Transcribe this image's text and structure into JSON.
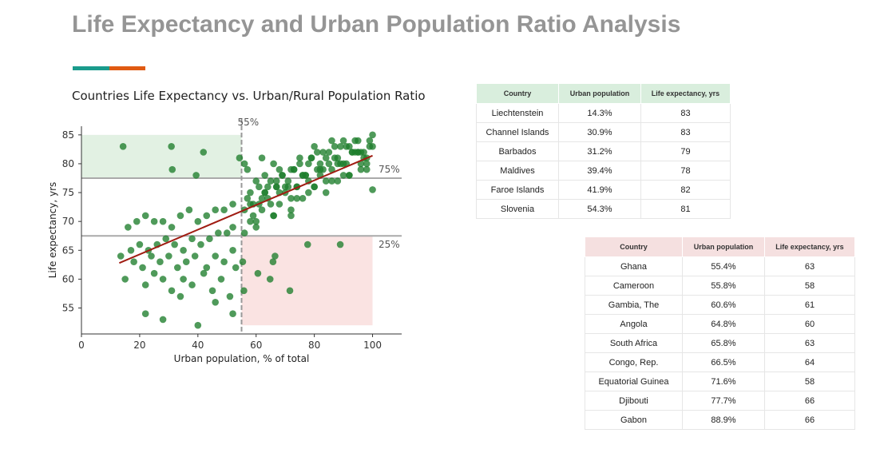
{
  "page": {
    "title": "Life Expectancy and Urban Population Ratio Analysis",
    "accent_colors": [
      "#1a9b8c",
      "#e05a12"
    ]
  },
  "chart_data": {
    "type": "scatter",
    "title": "Countries Life Expectancy vs. Urban/Rural Population Ratio",
    "xlabel": "Urban population, % of total",
    "ylabel": "Life expectancy, yrs",
    "xlim": [
      0,
      110
    ],
    "ylim": [
      50.5,
      86.5
    ],
    "xticks": [
      0,
      20,
      40,
      60,
      80,
      100
    ],
    "yticks": [
      55,
      60,
      65,
      70,
      75,
      80,
      85
    ],
    "grid": false,
    "point_color": "#1e7d2c",
    "trend_color": "#a01c12",
    "trendline": {
      "x": [
        13,
        100
      ],
      "y": [
        62.8,
        81.4
      ]
    },
    "reference_lines": {
      "vertical": {
        "x": 55,
        "label": "55%"
      },
      "horizontal": [
        {
          "y": 77.5,
          "label": "75%"
        },
        {
          "y": 67.5,
          "label": "25%"
        }
      ]
    },
    "highlight_regions": [
      {
        "x": [
          0,
          55
        ],
        "y": [
          77.5,
          85
        ],
        "color": "#e2f1e3"
      },
      {
        "x": [
          55,
          100
        ],
        "y": [
          52,
          67.5
        ],
        "color": "#fae3e2"
      }
    ],
    "points": {
      "x": [
        14.3,
        30.9,
        31.2,
        39.4,
        41.9,
        54.3,
        15,
        22,
        25,
        28,
        31,
        35,
        38,
        42,
        45,
        48,
        51,
        53,
        18,
        21,
        24,
        27,
        30,
        33,
        36,
        39,
        43,
        46,
        49,
        52,
        13.5,
        17,
        20,
        23,
        26,
        29,
        32,
        35,
        38,
        41,
        44,
        47,
        50,
        52,
        16,
        19,
        22,
        25,
        28,
        31,
        34,
        37,
        40,
        43,
        46,
        49,
        52,
        22,
        28,
        34,
        40,
        46,
        52,
        55.4,
        55.8,
        60.6,
        64.8,
        65.8,
        66.5,
        71.6,
        77.7,
        88.9,
        56,
        58,
        60,
        62,
        64,
        66,
        68,
        70,
        72,
        74,
        76,
        78,
        80,
        82,
        84,
        86,
        88,
        90,
        92,
        94,
        96,
        98,
        100,
        57,
        59,
        61,
        63,
        65,
        67,
        69,
        71,
        73,
        75,
        77,
        79,
        81,
        83,
        85,
        87,
        89,
        91,
        93,
        95,
        97,
        99,
        100,
        56,
        59,
        62,
        65,
        68,
        71,
        74,
        77,
        80,
        83,
        86,
        89,
        92,
        95,
        98,
        57,
        60,
        63,
        66,
        69,
        72,
        75,
        78,
        81,
        84,
        87,
        90,
        93,
        96,
        99,
        58,
        61,
        64,
        67,
        70,
        73,
        76,
        79,
        82,
        85,
        88,
        91,
        94,
        97,
        56,
        62,
        68,
        74,
        80,
        86,
        92,
        98,
        60,
        66,
        72,
        78,
        84,
        90,
        96,
        58,
        63,
        67,
        72,
        76,
        82,
        88,
        95,
        100
      ],
      "y": [
        83,
        83,
        79,
        78,
        82,
        81,
        60,
        59,
        61,
        60,
        58,
        60,
        59,
        61,
        58,
        60,
        57,
        62,
        63,
        62,
        64,
        63,
        64,
        62,
        63,
        64,
        62,
        64,
        63,
        65,
        64,
        65,
        66,
        65,
        66,
        67,
        66,
        65,
        67,
        66,
        67,
        68,
        68,
        69,
        69,
        70,
        71,
        70,
        70,
        69,
        71,
        72,
        70,
        71,
        72,
        72,
        73,
        54,
        53,
        57,
        52,
        56,
        54,
        63,
        58,
        61,
        60,
        63,
        64,
        58,
        66,
        66,
        68,
        70,
        69,
        72,
        74,
        71,
        73,
        75,
        72,
        76,
        74,
        77,
        76,
        78,
        75,
        79,
        77,
        80,
        78,
        82,
        79,
        81,
        83,
        74,
        73,
        76,
        75,
        77,
        76,
        78,
        77,
        79,
        80,
        78,
        81,
        79,
        82,
        80,
        81,
        83,
        80,
        82,
        84,
        81,
        83,
        85,
        72,
        71,
        74,
        73,
        75,
        76,
        74,
        78,
        76,
        79,
        77,
        80,
        78,
        82,
        79,
        79,
        77,
        78,
        80,
        78,
        79,
        81,
        80,
        82,
        81,
        83,
        84,
        82,
        80,
        84,
        75,
        73,
        76,
        77,
        76,
        79,
        78,
        81,
        80,
        82,
        81,
        83,
        84,
        82,
        80,
        81,
        79,
        76,
        83,
        84,
        83,
        80,
        70,
        71,
        74,
        75,
        77,
        78,
        82,
        73,
        75,
        76,
        71,
        78,
        79,
        80,
        82,
        75.5
      ]
    }
  },
  "table_top": {
    "headers": [
      "Country",
      "Urban population",
      "Life expectancy, yrs"
    ],
    "rows": [
      [
        "Liechtenstein",
        "14.3%",
        "83"
      ],
      [
        "Channel Islands",
        "30.9%",
        "83"
      ],
      [
        "Barbados",
        "31.2%",
        "79"
      ],
      [
        "Maldives",
        "39.4%",
        "78"
      ],
      [
        "Faroe Islands",
        "41.9%",
        "82"
      ],
      [
        "Slovenia",
        "54.3%",
        "81"
      ]
    ]
  },
  "table_bottom": {
    "headers": [
      "Country",
      "Urban population",
      "Life expectancy, yrs"
    ],
    "rows": [
      [
        "Ghana",
        "55.4%",
        "63"
      ],
      [
        "Cameroon",
        "55.8%",
        "58"
      ],
      [
        "Gambia, The",
        "60.6%",
        "61"
      ],
      [
        "Angola",
        "64.8%",
        "60"
      ],
      [
        "South Africa",
        "65.8%",
        "63"
      ],
      [
        "Congo, Rep.",
        "66.5%",
        "64"
      ],
      [
        "Equatorial Guinea",
        "71.6%",
        "58"
      ],
      [
        "Djibouti",
        "77.7%",
        "66"
      ],
      [
        "Gabon",
        "88.9%",
        "66"
      ]
    ]
  }
}
